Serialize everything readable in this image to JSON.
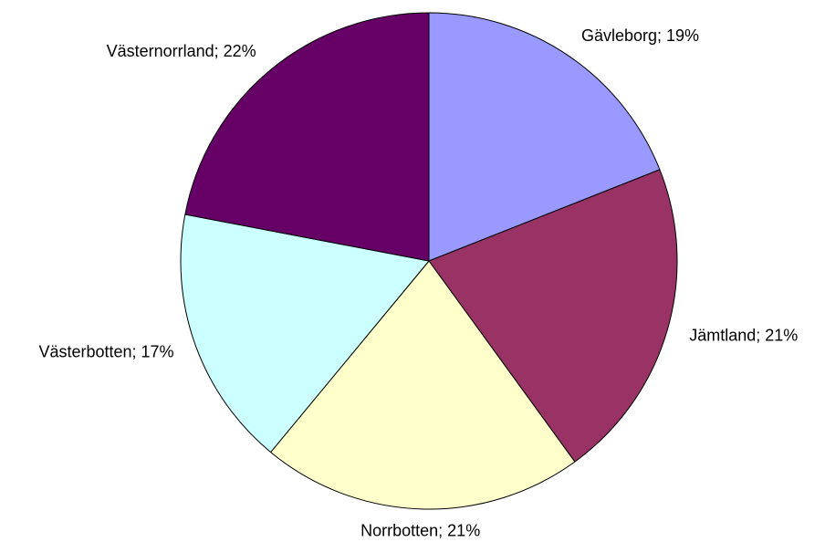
{
  "chart_data": {
    "type": "pie",
    "values": [
      19,
      21,
      21,
      17,
      22
    ],
    "value_labels": [
      "Gävleborg; 19%",
      "Jämtland; 21%",
      "Norrbotten; 21%",
      "Västerbotten; 17%",
      "Västernorrland; 22%"
    ],
    "colors": [
      "#9999ff",
      "#993366",
      "#ffffcc",
      "#ccffff",
      "#660066"
    ]
  }
}
